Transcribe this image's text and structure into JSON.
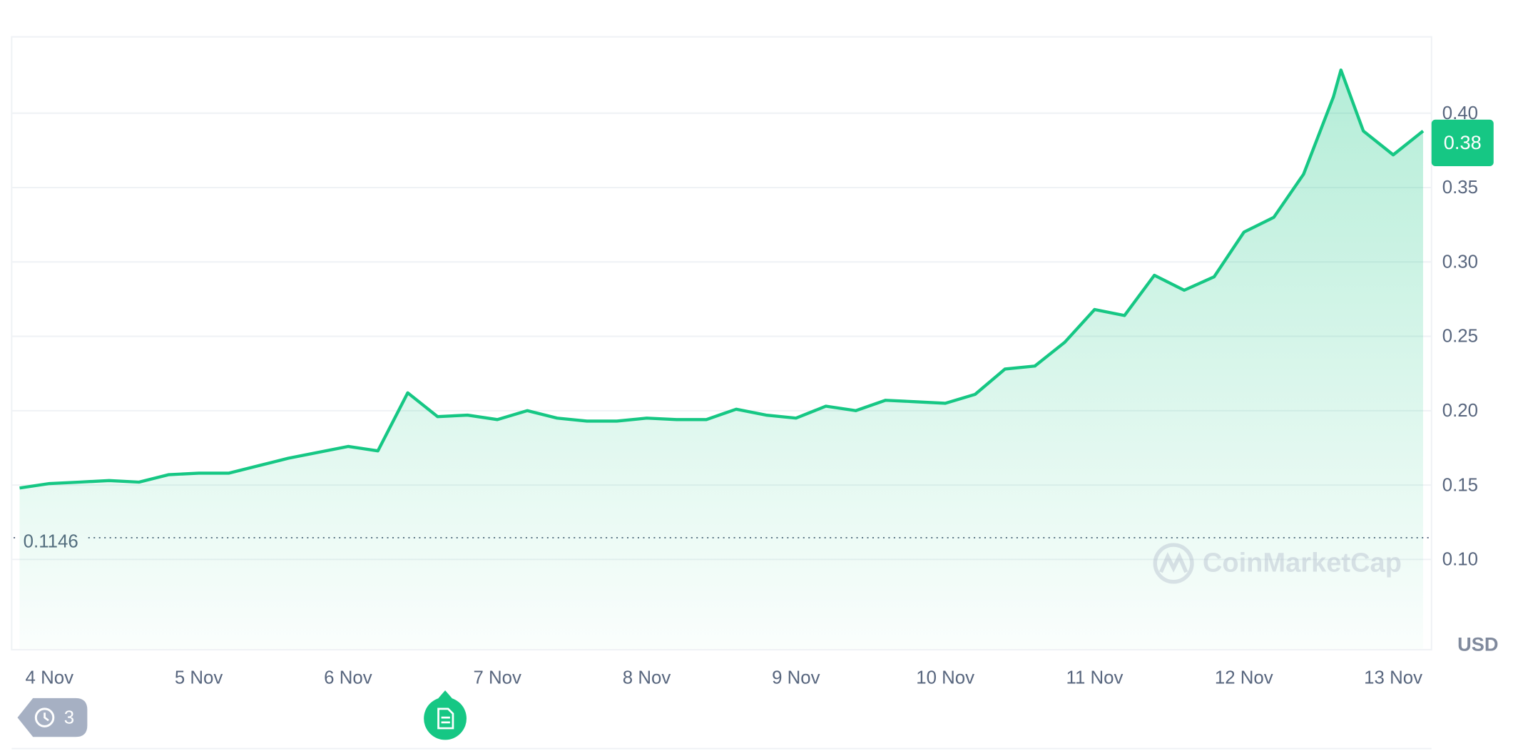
{
  "chart_data": {
    "type": "line",
    "x": [
      3.8,
      4.0,
      4.2,
      4.4,
      4.6,
      4.8,
      5.0,
      5.2,
      5.4,
      5.6,
      5.8,
      6.0,
      6.2,
      6.4,
      6.6,
      6.8,
      7.0,
      7.2,
      7.4,
      7.6,
      7.8,
      8.0,
      8.2,
      8.4,
      8.6,
      8.8,
      9.0,
      9.2,
      9.4,
      9.6,
      9.8,
      10.0,
      10.2,
      10.4,
      10.6,
      10.8,
      11.0,
      11.2,
      11.4,
      11.6,
      11.8,
      12.0,
      12.2,
      12.4,
      12.6,
      12.65,
      12.8,
      13.0,
      13.2
    ],
    "series": [
      {
        "color": "#16c784",
        "values": [
          0.148,
          0.151,
          0.152,
          0.153,
          0.152,
          0.157,
          0.158,
          0.158,
          0.163,
          0.168,
          0.172,
          0.176,
          0.173,
          0.212,
          0.196,
          0.197,
          0.194,
          0.2,
          0.195,
          0.193,
          0.193,
          0.195,
          0.194,
          0.194,
          0.201,
          0.197,
          0.195,
          0.203,
          0.2,
          0.207,
          0.206,
          0.205,
          0.211,
          0.228,
          0.23,
          0.246,
          0.268,
          0.264,
          0.291,
          0.281,
          0.29,
          0.32,
          0.33,
          0.359,
          0.411,
          0.429,
          0.388,
          0.372,
          0.388
        ]
      }
    ],
    "xlim": [
      3.76,
      13.25
    ],
    "ylim": [
      0.04,
      0.45
    ],
    "xticks": [
      {
        "value": 4,
        "label": "4 Nov"
      },
      {
        "value": 5,
        "label": "5 Nov"
      },
      {
        "value": 6,
        "label": "6 Nov"
      },
      {
        "value": 7,
        "label": "7 Nov"
      },
      {
        "value": 8,
        "label": "8 Nov"
      },
      {
        "value": 9,
        "label": "9 Nov"
      },
      {
        "value": 10,
        "label": "10 Nov"
      },
      {
        "value": 11,
        "label": "11 Nov"
      },
      {
        "value": 12,
        "label": "12 Nov"
      },
      {
        "value": 13,
        "label": "13 Nov"
      }
    ],
    "yticks": [
      {
        "value": 0.1,
        "label": "0.10"
      },
      0.15,
      {
        "value": 0.2,
        "label": "0.20"
      },
      0.25,
      {
        "value": 0.3,
        "label": "0.30"
      },
      0.35,
      {
        "value": 0.4,
        "label": "0.40"
      }
    ],
    "grid": true,
    "current_price": 0.38,
    "reference_price": 0.1146,
    "currency": "USD",
    "watermark": "CoinMarketCap",
    "history_count": "3"
  }
}
